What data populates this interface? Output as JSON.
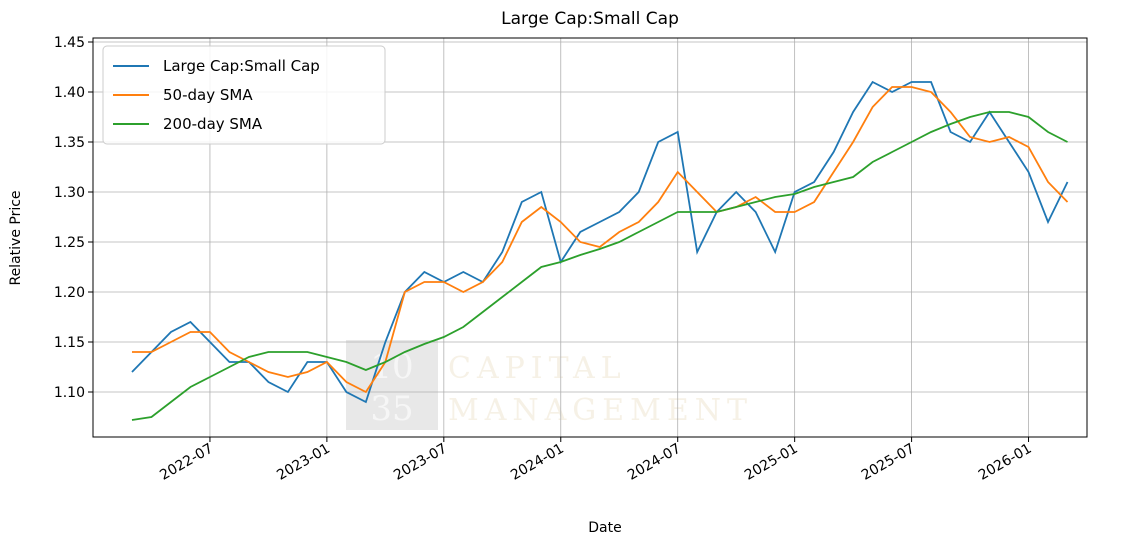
{
  "chart_data": {
    "type": "line",
    "title": "Large Cap:Small Cap",
    "x_label": "Date",
    "y_label": "Relative Price",
    "watermark": [
      "10",
      "35",
      "CAPITAL",
      "MANAGEMENT"
    ],
    "x": [
      "2022-03",
      "2022-04",
      "2022-05",
      "2022-06",
      "2022-07",
      "2022-08",
      "2022-09",
      "2022-10",
      "2022-11",
      "2022-12",
      "2023-01",
      "2023-02",
      "2023-03",
      "2023-04",
      "2023-05",
      "2023-06",
      "2023-07",
      "2023-08",
      "2023-09",
      "2023-10",
      "2023-11",
      "2023-12",
      "2024-01",
      "2024-02",
      "2024-03",
      "2024-04",
      "2024-05",
      "2024-06",
      "2024-07",
      "2024-08",
      "2024-09",
      "2024-10",
      "2024-11",
      "2024-12",
      "2025-01",
      "2025-02",
      "2025-03",
      "2025-04",
      "2025-05",
      "2025-06",
      "2025-07",
      "2025-08",
      "2025-09",
      "2025-10",
      "2025-11",
      "2025-12",
      "2026-01",
      "2026-02",
      "2026-03"
    ],
    "series": [
      {
        "name": "Large Cap:Small Cap",
        "color": "#1f77b4",
        "values": [
          1.12,
          1.14,
          1.16,
          1.17,
          1.15,
          1.13,
          1.13,
          1.11,
          1.1,
          1.13,
          1.13,
          1.1,
          1.09,
          1.15,
          1.2,
          1.22,
          1.21,
          1.22,
          1.21,
          1.24,
          1.29,
          1.3,
          1.23,
          1.26,
          1.27,
          1.28,
          1.3,
          1.35,
          1.36,
          1.24,
          1.28,
          1.3,
          1.28,
          1.24,
          1.3,
          1.31,
          1.34,
          1.38,
          1.41,
          1.4,
          1.41,
          1.41,
          1.36,
          1.35,
          1.38,
          1.35,
          1.32,
          1.27,
          1.31
        ]
      },
      {
        "name": "50-day SMA",
        "color": "#ff7f0e",
        "values": [
          1.14,
          1.14,
          1.15,
          1.16,
          1.16,
          1.14,
          1.13,
          1.12,
          1.115,
          1.12,
          1.13,
          1.11,
          1.1,
          1.13,
          1.2,
          1.21,
          1.21,
          1.2,
          1.21,
          1.23,
          1.27,
          1.285,
          1.27,
          1.25,
          1.245,
          1.26,
          1.27,
          1.29,
          1.32,
          1.3,
          1.28,
          1.285,
          1.295,
          1.28,
          1.28,
          1.29,
          1.32,
          1.35,
          1.385,
          1.405,
          1.405,
          1.4,
          1.38,
          1.355,
          1.35,
          1.355,
          1.345,
          1.31,
          1.29
        ]
      },
      {
        "name": "200-day SMA",
        "color": "#2ca02c",
        "values": [
          1.072,
          1.075,
          1.09,
          1.105,
          1.115,
          1.125,
          1.135,
          1.14,
          1.14,
          1.14,
          1.135,
          1.13,
          1.122,
          1.13,
          1.14,
          1.148,
          1.155,
          1.165,
          1.18,
          1.195,
          1.21,
          1.225,
          1.23,
          1.237,
          1.243,
          1.25,
          1.26,
          1.27,
          1.28,
          1.28,
          1.28,
          1.285,
          1.29,
          1.295,
          1.298,
          1.305,
          1.31,
          1.315,
          1.33,
          1.34,
          1.35,
          1.36,
          1.368,
          1.375,
          1.38,
          1.38,
          1.375,
          1.36,
          1.35
        ]
      }
    ],
    "xlim": [
      "2022-01",
      "2026-04"
    ],
    "xticks": [
      "2022-07",
      "2023-01",
      "2023-07",
      "2024-01",
      "2024-07",
      "2025-01",
      "2025-07",
      "2026-01"
    ],
    "ylim": [
      1.055,
      1.454
    ],
    "yticks": [
      {
        "value": 1.1,
        "label": "1.10"
      },
      1.15,
      {
        "value": 1.2,
        "label": "1.20"
      },
      1.25,
      {
        "value": 1.3,
        "label": "1.30"
      },
      1.35,
      {
        "value": 1.4,
        "label": "1.40"
      },
      1.45
    ],
    "grid": true,
    "legend": "upper left"
  }
}
